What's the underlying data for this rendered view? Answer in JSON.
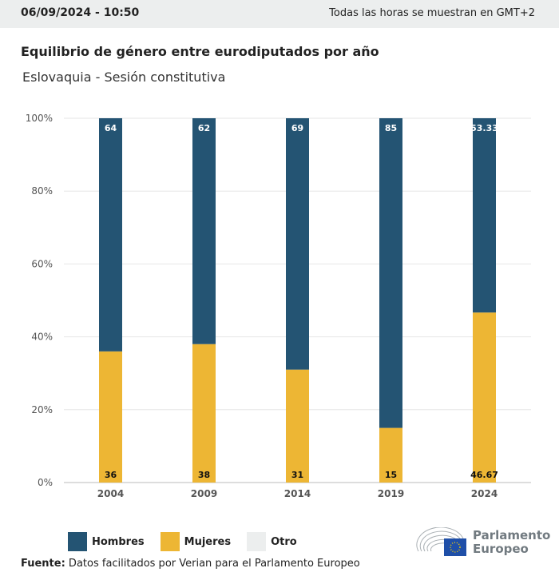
{
  "header": {
    "datetime": "06/09/2024 - 10:50",
    "timezone_note": "Todas las horas se muestran en GMT+2"
  },
  "title": "Equilibrio de género entre eurodiputados por año",
  "subtitle": "Eslovaquia - Sesión constitutiva",
  "chart_data": {
    "type": "bar",
    "stacked": true,
    "categories": [
      "2004",
      "2009",
      "2014",
      "2019",
      "2024"
    ],
    "series": [
      {
        "name": "Mujeres",
        "color": "#edb634",
        "values": [
          36,
          38,
          31,
          15,
          46.67
        ],
        "labels": [
          "36",
          "38",
          "31",
          "15",
          "46.67"
        ]
      },
      {
        "name": "Hombres",
        "color": "#245473",
        "values": [
          64,
          62,
          69,
          85,
          53.33
        ],
        "labels": [
          "64",
          "62",
          "69",
          "85",
          "53.33"
        ]
      },
      {
        "name": "Otro",
        "color": "#eceeee",
        "values": [
          0,
          0,
          0,
          0,
          0
        ]
      }
    ],
    "ylim": [
      0,
      100
    ],
    "yticks": [
      "0%",
      "20%",
      "40%",
      "60%",
      "80%",
      "100%"
    ],
    "grid": true,
    "legend": "bottom-left"
  },
  "legend": [
    {
      "label": "Hombres",
      "color": "#245473"
    },
    {
      "label": "Mujeres",
      "color": "#edb634"
    },
    {
      "label": "Otro",
      "color": "#eceeee"
    }
  ],
  "source": {
    "label": "Fuente:",
    "text": " Datos facilitados por Verian para el Parlamento Europeo"
  },
  "logo": {
    "line1": "Parlamento",
    "line2": "Europeo"
  }
}
